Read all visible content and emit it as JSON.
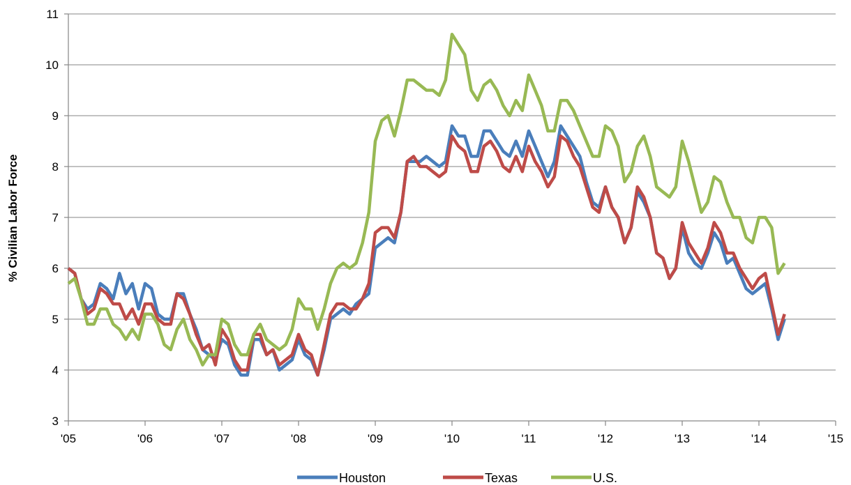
{
  "chart_data": {
    "type": "line",
    "title": "",
    "xlabel": "",
    "ylabel": "% Civilian Labor Force",
    "ylim": [
      3,
      11
    ],
    "xlim": [
      2005,
      2015
    ],
    "x_start": 2005.0,
    "x_step": 0.0833333,
    "yticks": [
      "3",
      "4",
      "5",
      "6",
      "7",
      "8",
      "9",
      "10",
      "11"
    ],
    "xticks": [
      "'05",
      "'06",
      "'07",
      "'08",
      "'09",
      "'10",
      "'11",
      "'12",
      "'13",
      "'14",
      "'15"
    ],
    "grid": true,
    "legend_position": "bottom",
    "series": [
      {
        "name": "Houston",
        "color": "#4A7EBB",
        "values": [
          6.0,
          5.9,
          5.4,
          5.2,
          5.3,
          5.7,
          5.6,
          5.4,
          5.9,
          5.5,
          5.7,
          5.2,
          5.7,
          5.6,
          5.1,
          5.0,
          5.0,
          5.5,
          5.5,
          5.1,
          4.8,
          4.4,
          4.3,
          4.2,
          4.6,
          4.5,
          4.1,
          3.9,
          3.9,
          4.6,
          4.6,
          4.3,
          4.4,
          4.0,
          4.1,
          4.2,
          4.6,
          4.3,
          4.2,
          3.9,
          4.4,
          5.0,
          5.1,
          5.2,
          5.1,
          5.3,
          5.4,
          5.5,
          6.4,
          6.5,
          6.6,
          6.5,
          7.1,
          8.1,
          8.1,
          8.1,
          8.2,
          8.1,
          8.0,
          8.1,
          8.8,
          8.6,
          8.6,
          8.2,
          8.2,
          8.7,
          8.7,
          8.5,
          8.3,
          8.2,
          8.5,
          8.2,
          8.7,
          8.4,
          8.1,
          7.8,
          8.1,
          8.8,
          8.6,
          8.4,
          8.2,
          7.7,
          7.3,
          7.2,
          7.6,
          7.2,
          7.0,
          6.5,
          6.8,
          7.5,
          7.3,
          7.0,
          6.3,
          6.2,
          5.8,
          6.0,
          6.8,
          6.3,
          6.1,
          6.0,
          6.3,
          6.7,
          6.5,
          6.1,
          6.2,
          5.9,
          5.6,
          5.5,
          5.6,
          5.7,
          5.2,
          4.6,
          5.0
        ]
      },
      {
        "name": "Texas",
        "color": "#BE4B48",
        "values": [
          6.0,
          5.9,
          5.4,
          5.1,
          5.2,
          5.6,
          5.5,
          5.3,
          5.3,
          5.0,
          5.2,
          4.9,
          5.3,
          5.3,
          5.0,
          4.9,
          4.9,
          5.5,
          5.4,
          5.1,
          4.7,
          4.4,
          4.5,
          4.1,
          4.8,
          4.6,
          4.2,
          4.0,
          4.0,
          4.7,
          4.7,
          4.3,
          4.4,
          4.1,
          4.2,
          4.3,
          4.7,
          4.4,
          4.3,
          3.9,
          4.5,
          5.1,
          5.3,
          5.3,
          5.2,
          5.2,
          5.4,
          5.7,
          6.7,
          6.8,
          6.8,
          6.6,
          7.1,
          8.1,
          8.2,
          8.0,
          8.0,
          7.9,
          7.8,
          7.9,
          8.6,
          8.4,
          8.3,
          7.9,
          7.9,
          8.4,
          8.5,
          8.3,
          8.0,
          7.9,
          8.2,
          7.9,
          8.4,
          8.1,
          7.9,
          7.6,
          7.8,
          8.6,
          8.5,
          8.2,
          8.0,
          7.6,
          7.2,
          7.1,
          7.6,
          7.2,
          7.0,
          6.5,
          6.8,
          7.6,
          7.4,
          7.0,
          6.3,
          6.2,
          5.8,
          6.0,
          6.9,
          6.5,
          6.3,
          6.1,
          6.4,
          6.9,
          6.7,
          6.3,
          6.3,
          6.0,
          5.8,
          5.6,
          5.8,
          5.9,
          5.3,
          4.7,
          5.1
        ]
      },
      {
        "name": "U.S.",
        "color": "#98B954",
        "values": [
          5.7,
          5.8,
          5.4,
          4.9,
          4.9,
          5.2,
          5.2,
          4.9,
          4.8,
          4.6,
          4.8,
          4.6,
          5.1,
          5.1,
          4.9,
          4.5,
          4.4,
          4.8,
          5.0,
          4.6,
          4.4,
          4.1,
          4.3,
          4.3,
          5.0,
          4.9,
          4.5,
          4.3,
          4.3,
          4.7,
          4.9,
          4.6,
          4.5,
          4.4,
          4.5,
          4.8,
          5.4,
          5.2,
          5.2,
          4.8,
          5.2,
          5.7,
          6.0,
          6.1,
          6.0,
          6.1,
          6.5,
          7.1,
          8.5,
          8.9,
          9.0,
          8.6,
          9.1,
          9.7,
          9.7,
          9.6,
          9.5,
          9.5,
          9.4,
          9.7,
          10.6,
          10.4,
          10.2,
          9.5,
          9.3,
          9.6,
          9.7,
          9.5,
          9.2,
          9.0,
          9.3,
          9.1,
          9.8,
          9.5,
          9.2,
          8.7,
          8.7,
          9.3,
          9.3,
          9.1,
          8.8,
          8.5,
          8.2,
          8.2,
          8.8,
          8.7,
          8.4,
          7.7,
          7.9,
          8.4,
          8.6,
          8.2,
          7.6,
          7.5,
          7.4,
          7.6,
          8.5,
          8.1,
          7.6,
          7.1,
          7.3,
          7.8,
          7.7,
          7.3,
          7.0,
          7.0,
          6.6,
          6.5,
          7.0,
          7.0,
          6.8,
          5.9,
          6.1
        ]
      }
    ]
  }
}
